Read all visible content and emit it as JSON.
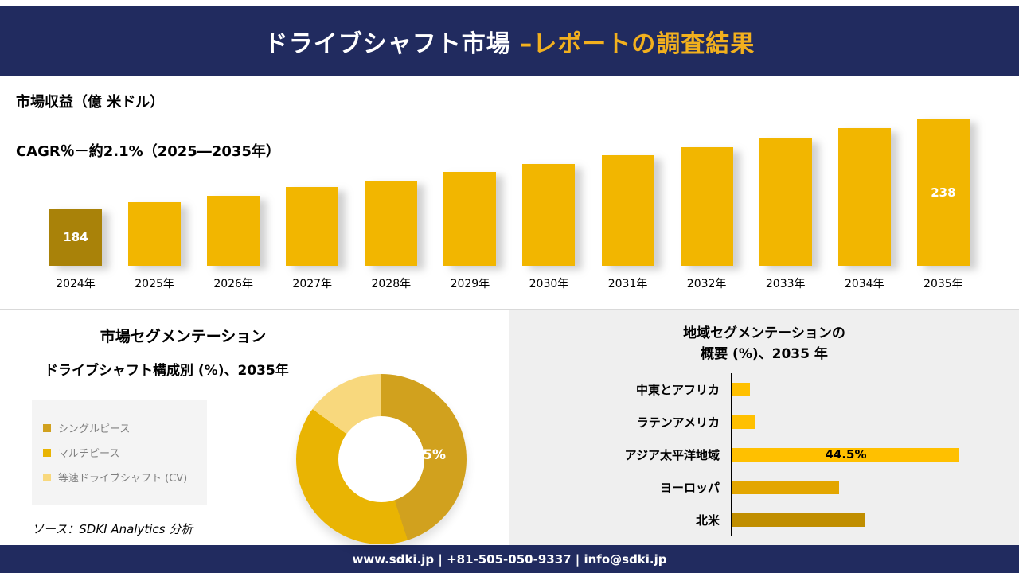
{
  "colors": {
    "navy": "#212B5F",
    "gold": "#F2B01E"
  },
  "header": {
    "title_main": "ドライブシャフト市場 ",
    "title_accent": "–レポートの調査結果"
  },
  "chart_data": [
    {
      "type": "bar",
      "title": "市場収益（億 米ドル）",
      "subtitle": "CAGR％－約2.1%（2025―2035年）",
      "categories": [
        "2024年",
        "2025年",
        "2026年",
        "2027年",
        "2028年",
        "2029年",
        "2030年",
        "2031年",
        "2032年",
        "2033年",
        "2034年",
        "2035年"
      ],
      "values": [
        184,
        188,
        192,
        197,
        201,
        206,
        211,
        216,
        221,
        226,
        232,
        238
      ],
      "data_labels": {
        "0": "184",
        "11": "238"
      },
      "ylim": [
        150,
        245
      ],
      "bar_color": "#F2B600",
      "first_bar_color": "#A98209",
      "xlabel": "",
      "ylabel": "市場収益（億 米ドル）",
      "grid": false,
      "legend_position": "none"
    },
    {
      "type": "pie",
      "donut": true,
      "title": "市場セグメンテーション",
      "subtitle": "ドライブシャフト構成別 (%)、2035年",
      "segments": [
        {
          "label": "シングルピース",
          "value": 45,
          "color": "#D1A11E",
          "data_label": "45%"
        },
        {
          "label": "マルチピース",
          "value": 40,
          "color": "#E9B403"
        },
        {
          "label": "等速ドライブシャフト (CV)",
          "value": 15,
          "color": "#F8D87D"
        }
      ],
      "legend_position": "left"
    },
    {
      "type": "bar",
      "orientation": "horizontal",
      "title_line1": "地域セグメンテーションの",
      "title_line2": "概要 (%)、2035 年",
      "categories": [
        "中東とアフリカ",
        "ラテンアメリカ",
        "アジア太平洋地域",
        "ヨーロッパ",
        "北米"
      ],
      "values": [
        3.5,
        4.5,
        44.5,
        21,
        26
      ],
      "data_labels": {
        "2": "44.5%"
      },
      "colors": [
        "#FFC000",
        "#FFC000",
        "#FFC000",
        "#E3A600",
        "#C08E00"
      ],
      "xlim": [
        0,
        50
      ],
      "grid": false,
      "legend_position": "none"
    }
  ],
  "source_note": "ソース：SDKI Analytics 分析",
  "footer": {
    "text": "www.sdki.jp | +81-505-050-9337 | info@sdki.jp"
  }
}
